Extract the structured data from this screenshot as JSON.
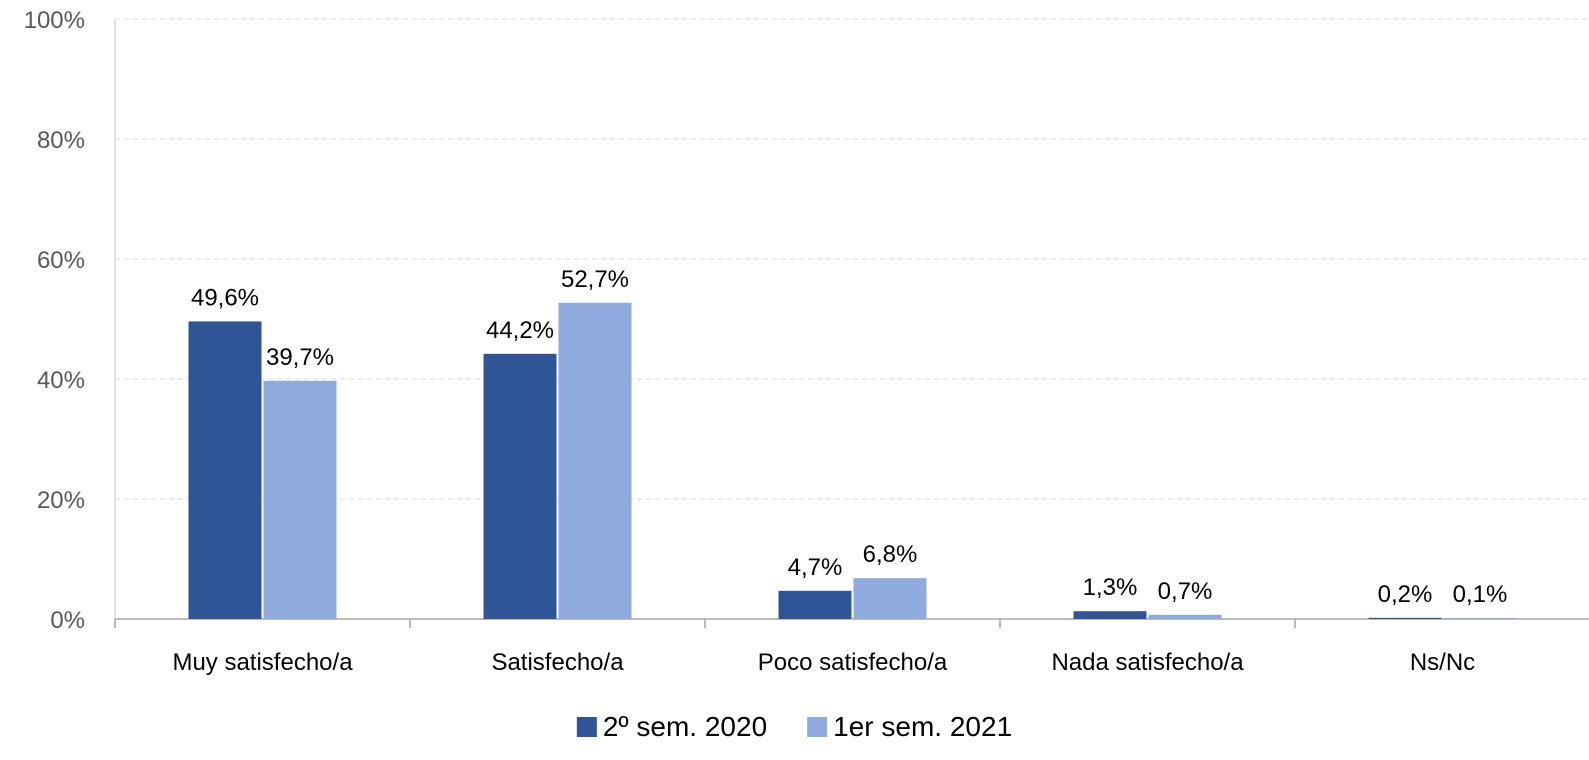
{
  "chart_data": {
    "type": "bar",
    "categories": [
      "Muy satisfecho/a",
      "Satisfecho/a",
      "Poco satisfecho/a",
      "Nada satisfecho/a",
      "Ns/Nc"
    ],
    "series": [
      {
        "name": "2º sem. 2020",
        "values": [
          49.6,
          44.2,
          4.7,
          1.3,
          0.2
        ],
        "labels": [
          "49,6%",
          "44,2%",
          "4,7%",
          "1,3%",
          "0,2%"
        ],
        "color": "#2F5597"
      },
      {
        "name": "1er sem. 2021",
        "values": [
          39.7,
          52.7,
          6.8,
          0.7,
          0.1
        ],
        "labels": [
          "39,7%",
          "52,7%",
          "6,8%",
          "0,7%",
          "0,1%"
        ],
        "color": "#8FAADC"
      }
    ],
    "yticks": [
      "0%",
      "20%",
      "40%",
      "60%",
      "80%",
      "100%"
    ],
    "ylim": [
      0,
      100
    ],
    "grid": true,
    "legend_position": "bottom"
  }
}
